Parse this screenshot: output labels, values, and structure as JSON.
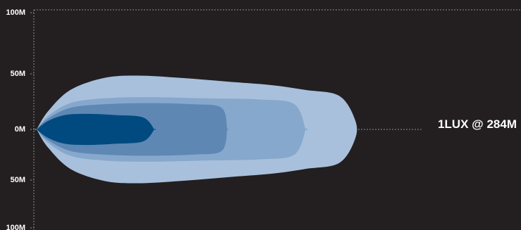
{
  "chart_data": {
    "type": "area",
    "title": "",
    "xlabel": "",
    "ylabel": "",
    "ylim": [
      -100,
      100
    ],
    "y_ticks": [
      {
        "value": 100,
        "label": "100M"
      },
      {
        "value": 50,
        "label": "50M"
      },
      {
        "value": 0,
        "label": "0M"
      },
      {
        "value": -50,
        "label": "50M"
      },
      {
        "value": -100,
        "label": "100M"
      }
    ],
    "reach_label": "1LUX @ 284M",
    "reach_distance_m": 284,
    "grid": false,
    "series": [
      {
        "fill": "#a8c0dc",
        "x": [
          0,
          10,
          30,
          60,
          90,
          130,
          170,
          210,
          240,
          270,
          284
        ],
        "half_width": [
          0,
          15,
          33,
          43,
          45,
          43,
          40,
          37,
          33,
          28,
          8
        ]
      },
      {
        "fill": "#86a8cc",
        "x": [
          0,
          10,
          30,
          60,
          100,
          150,
          200,
          230,
          240
        ],
        "half_width": [
          0,
          11,
          22,
          26,
          27,
          26,
          25,
          21,
          0
        ]
      },
      {
        "fill": "#5e87b4",
        "x": [
          0,
          10,
          30,
          60,
          100,
          140,
          165,
          170
        ],
        "half_width": [
          0,
          9,
          18,
          21,
          22,
          21,
          18,
          0
        ]
      },
      {
        "fill": "#004a80",
        "x": [
          0,
          10,
          25,
          45,
          70,
          95,
          105
        ],
        "half_width": [
          0,
          7,
          12,
          13,
          12,
          10,
          0
        ]
      }
    ]
  }
}
